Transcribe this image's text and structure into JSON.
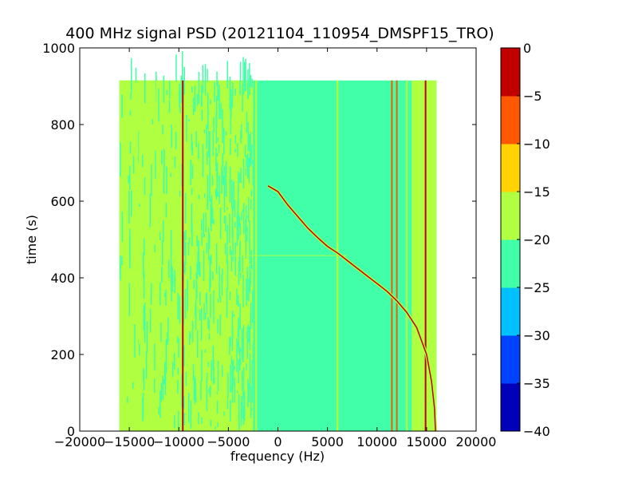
{
  "chart_data": {
    "type": "heatmap",
    "title": "400 MHz signal PSD (20121104_110954_DMSPF15_TRO)",
    "xlabel": "frequency (Hz)",
    "ylabel": "time (s)",
    "xlim": [
      -20000,
      20000
    ],
    "ylim": [
      0,
      1000
    ],
    "xticks": [
      -20000,
      -15000,
      -10000,
      -5000,
      0,
      5000,
      10000,
      15000,
      20000
    ],
    "xtick_labels": [
      "−20000",
      "−15000",
      "−10000",
      "−5000",
      "0",
      "5000",
      "10000",
      "15000",
      "20000"
    ],
    "yticks": [
      0,
      200,
      400,
      600,
      800,
      1000
    ],
    "ytick_labels": [
      "0",
      "200",
      "400",
      "600",
      "800",
      "1000"
    ],
    "data_extent": {
      "x": [
        -16000,
        16000
      ],
      "y": [
        0,
        915
      ]
    },
    "background_level": "-25 to -20",
    "low_freq_band": {
      "x": [
        -16000,
        -2500
      ],
      "level": "-20 to -15",
      "note": "speckled with -25 to -20"
    },
    "high_freq_band": {
      "x": [
        13500,
        16000
      ],
      "level": "-20 to -15"
    },
    "vertical_lines": [
      {
        "x": -14200,
        "level": "-20 to -15"
      },
      {
        "x": -12200,
        "level": "-20 to -15"
      },
      {
        "x": -9600,
        "level": "-5 to 0"
      },
      {
        "x": -2200,
        "level": "-20 to -15"
      },
      {
        "x": 6000,
        "level": "-20 to -15"
      },
      {
        "x": 11500,
        "level": "-10 to -5"
      },
      {
        "x": 12000,
        "level": "-10 to -5"
      },
      {
        "x": 13000,
        "level": "-20 to -15"
      },
      {
        "x": 14900,
        "level": "-5 to 0"
      }
    ],
    "doppler_track": {
      "level": "-5 to 0",
      "points": [
        [
          -1000,
          640
        ],
        [
          0,
          625
        ],
        [
          1000,
          590
        ],
        [
          2000,
          560
        ],
        [
          3000,
          530
        ],
        [
          4000,
          505
        ],
        [
          5000,
          482
        ],
        [
          6000,
          465
        ],
        [
          7000,
          445
        ],
        [
          8000,
          425
        ],
        [
          9000,
          405
        ],
        [
          10000,
          385
        ],
        [
          11000,
          365
        ],
        [
          12000,
          340
        ],
        [
          13000,
          310
        ],
        [
          14000,
          270
        ],
        [
          15000,
          200
        ],
        [
          15500,
          130
        ],
        [
          15800,
          60
        ],
        [
          15900,
          0
        ]
      ]
    },
    "horizontal_line": {
      "y": 458,
      "x": [
        -5000,
        7000
      ],
      "level": "-20 to -15"
    },
    "colorbar": {
      "min": -40,
      "max": 0,
      "ticks": [
        "0",
        "−5",
        "−10",
        "−15",
        "−20",
        "−25",
        "−30",
        "−35",
        "−40"
      ],
      "levels": [
        {
          "range": [
            -40,
            -35
          ],
          "color": "#0000b8"
        },
        {
          "range": [
            -35,
            -30
          ],
          "color": "#0042ff"
        },
        {
          "range": [
            -30,
            -25
          ],
          "color": "#00c0ff"
        },
        {
          "range": [
            -25,
            -20
          ],
          "color": "#40ffa8"
        },
        {
          "range": [
            -20,
            -15
          ],
          "color": "#b0ff40"
        },
        {
          "range": [
            -15,
            -10
          ],
          "color": "#ffd200"
        },
        {
          "range": [
            -10,
            -5
          ],
          "color": "#ff5800"
        },
        {
          "range": [
            -5,
            0
          ],
          "color": "#c00000"
        }
      ]
    }
  }
}
